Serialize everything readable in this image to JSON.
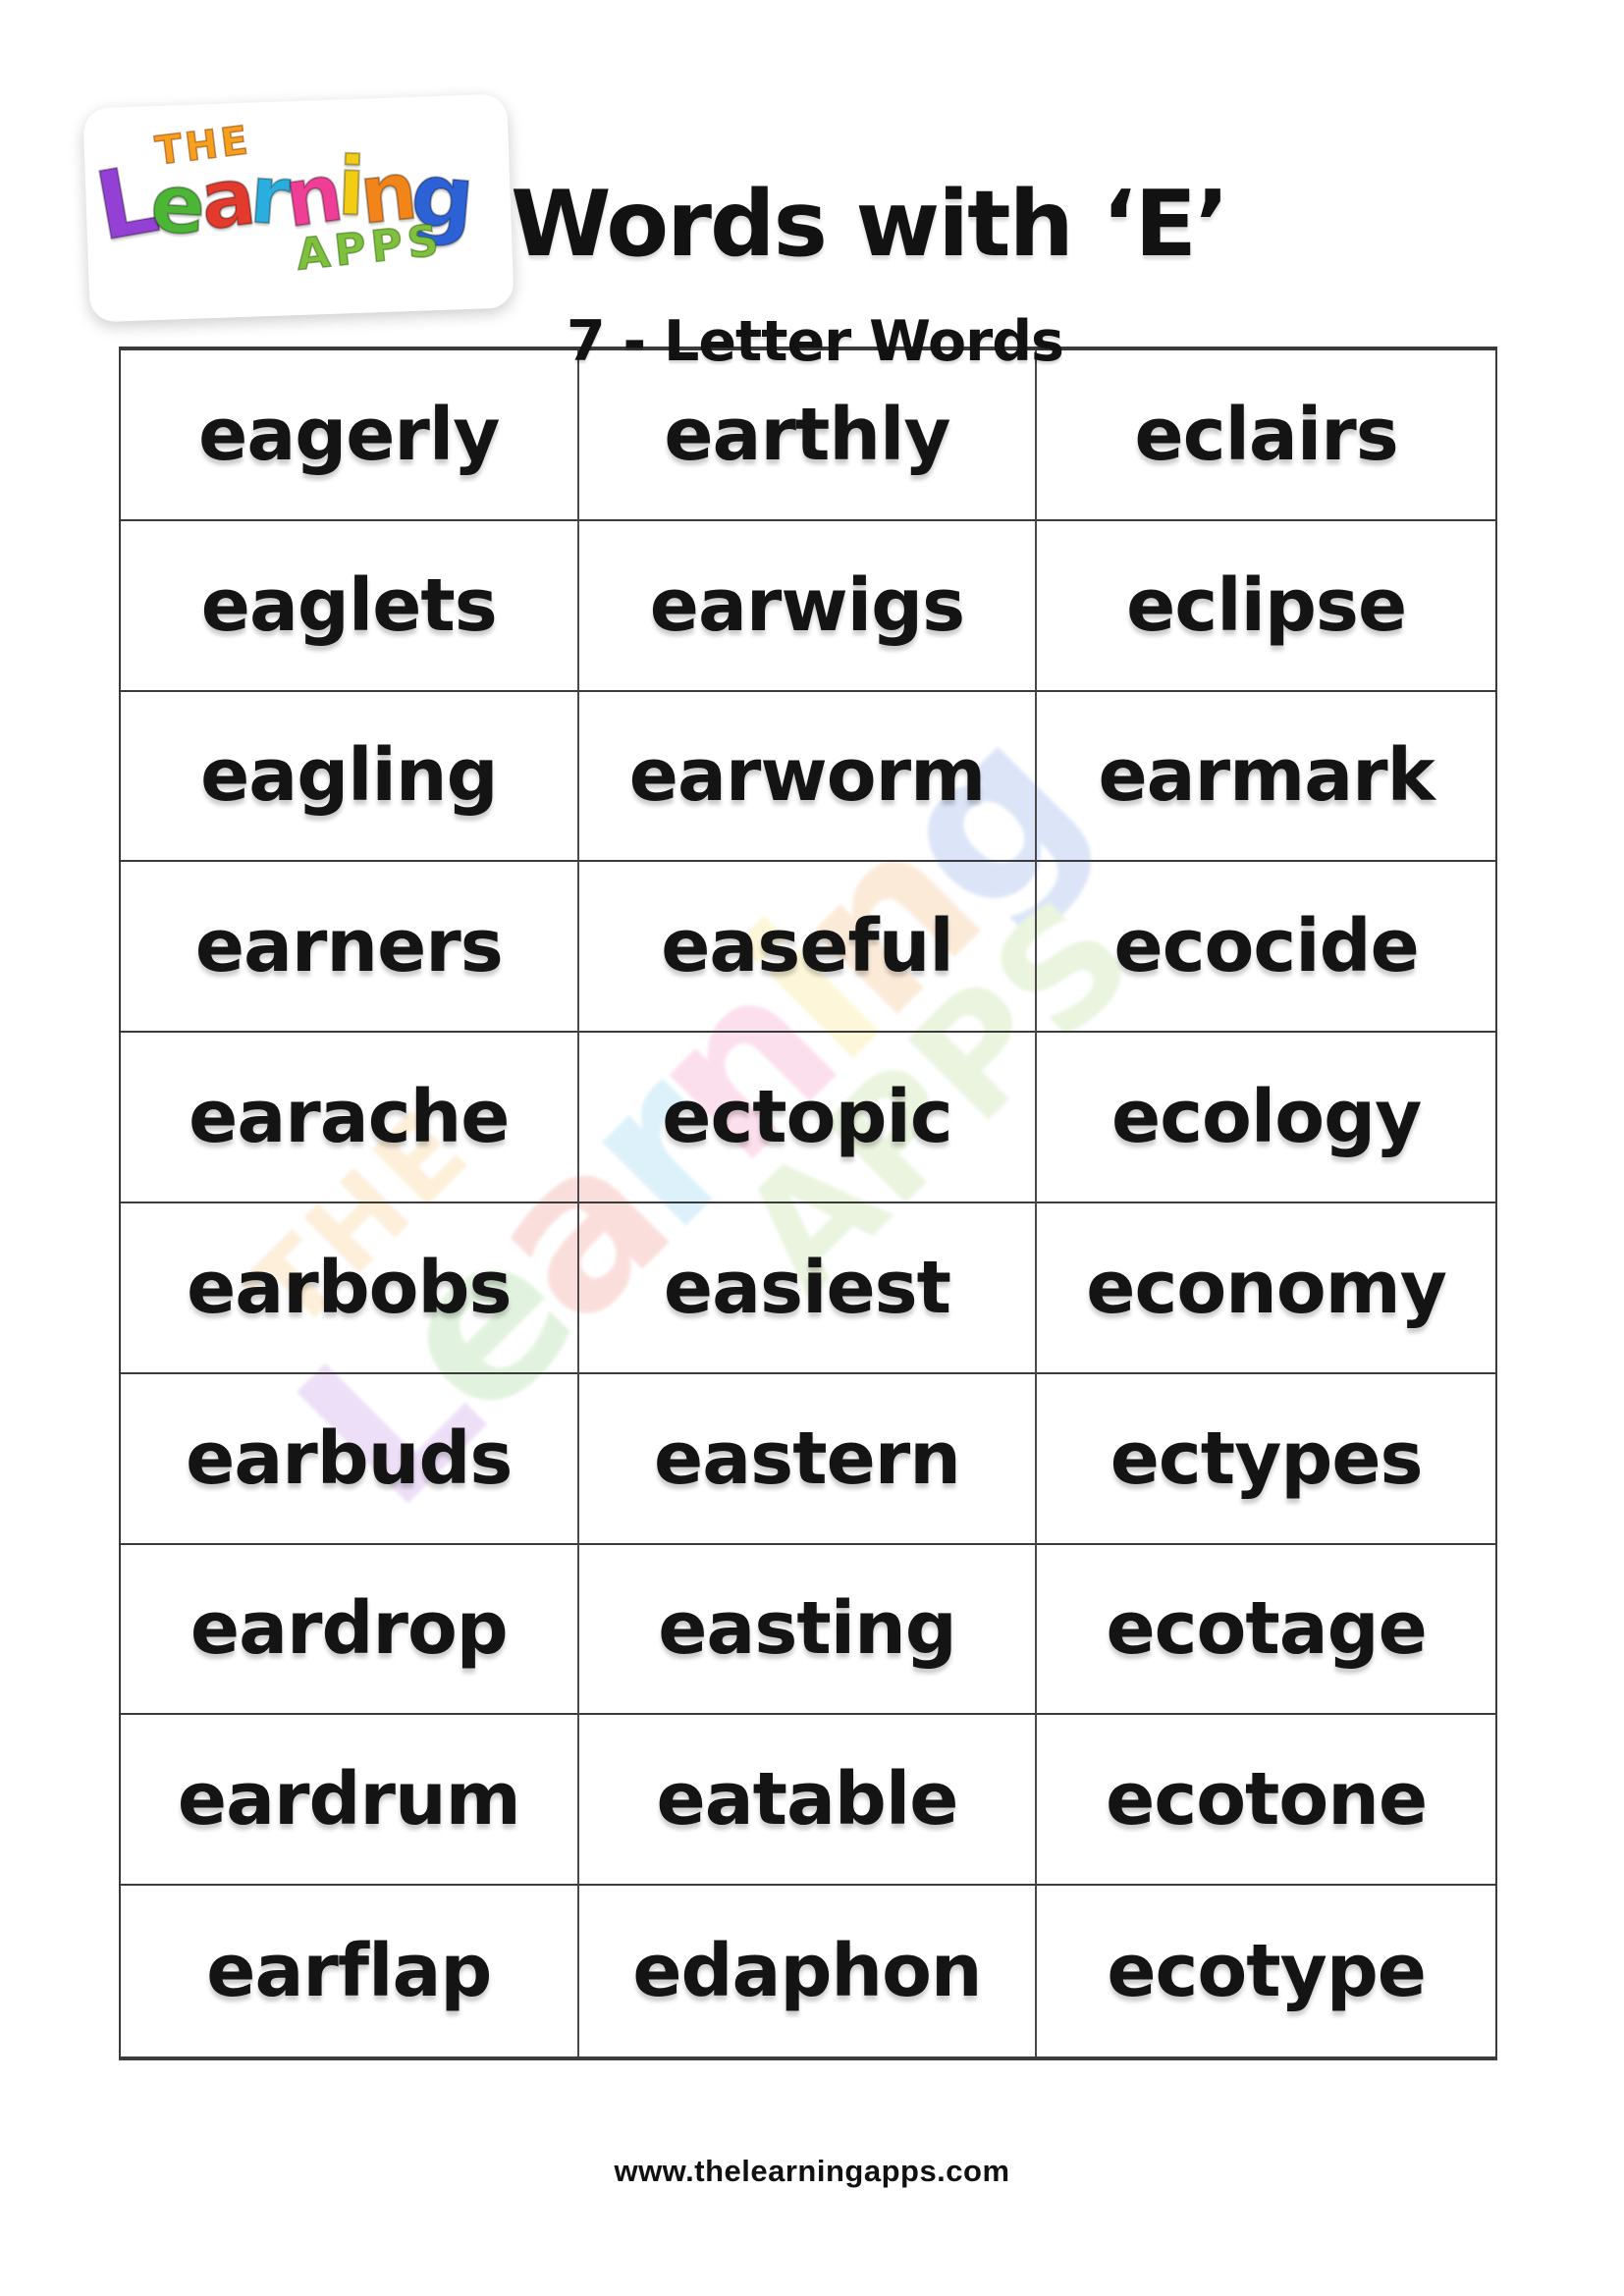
{
  "logo": {
    "the": "THE",
    "the_color": "#f5a01e",
    "letters": [
      {
        "ch": "L",
        "color": "#9440d5"
      },
      {
        "ch": "e",
        "color": "#4cb536"
      },
      {
        "ch": "a",
        "color": "#e23a2c"
      },
      {
        "ch": "r",
        "color": "#2aaede"
      },
      {
        "ch": "n",
        "color": "#ee3e95"
      },
      {
        "ch": "i",
        "color": "#f3cd14"
      },
      {
        "ch": "n",
        "color": "#f2851a"
      },
      {
        "ch": "g",
        "color": "#2d62d6"
      }
    ],
    "apps": "APPS",
    "apps_color": "#7fc13e"
  },
  "header": {
    "title": "Words with ‘E’",
    "subtitle": "7 - Letter Words"
  },
  "table": {
    "rows": [
      [
        "eagerly",
        "earthly",
        "eclairs"
      ],
      [
        "eaglets",
        "earwigs",
        "eclipse"
      ],
      [
        "eagling",
        "earworm",
        "earmark"
      ],
      [
        "earners",
        "easeful",
        "ecocide"
      ],
      [
        "earache",
        "ectopic",
        "ecology"
      ],
      [
        "earbobs",
        "easiest",
        "economy"
      ],
      [
        "earbuds",
        "eastern",
        "ectypes"
      ],
      [
        "eardrop",
        "easting",
        "ecotage"
      ],
      [
        "eardrum",
        "eatable",
        "ecotone"
      ],
      [
        "earflap",
        "edaphon",
        "ecotype"
      ]
    ]
  },
  "footer": {
    "url": "www.thelearningapps.com"
  }
}
